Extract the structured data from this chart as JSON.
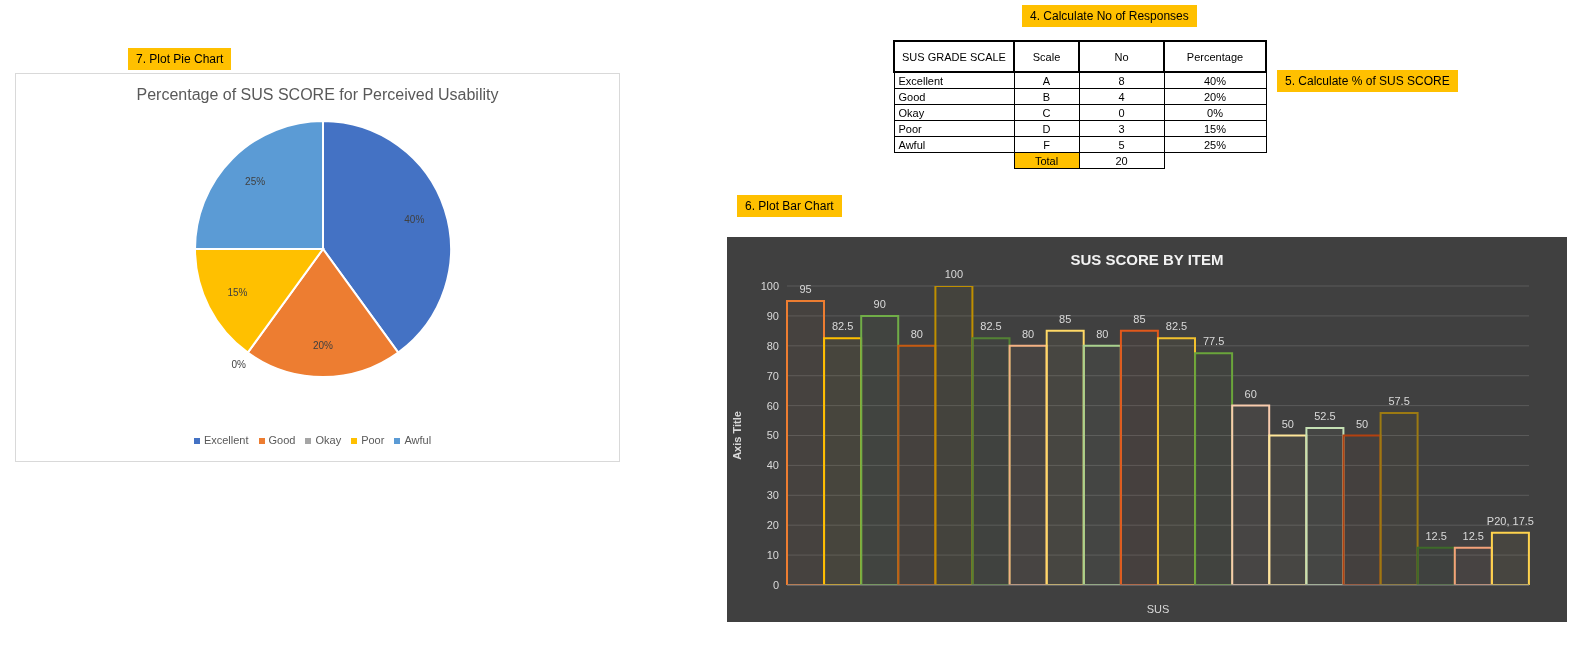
{
  "chart_data": [
    {
      "type": "pie",
      "title": "Percentage of SUS SCORE for Perceived Usability",
      "categories": [
        "Excellent",
        "Good",
        "Okay",
        "Poor",
        "Awful"
      ],
      "values": [
        40,
        20,
        0,
        15,
        25
      ],
      "colors": [
        "#4472c4",
        "#ed7d31",
        "#a5a5a5",
        "#ffc000",
        "#5b9bd5"
      ],
      "value_labels": [
        "40%",
        "20%",
        "0%",
        "15%",
        "25%"
      ],
      "legend": "bottom",
      "annotations": [
        "7. Plot Pie Chart"
      ]
    },
    {
      "type": "other",
      "title": "4. Calculate No of Responses",
      "categories": [
        "Excellent",
        "Good",
        "Okay",
        "Poor",
        "Awful"
      ],
      "series": [
        {
          "name": "No",
          "values": [
            8,
            4,
            0,
            3,
            5
          ]
        }
      ],
      "data_labels": true,
      "annotations": [
        "SUS GRADE SCALE",
        "Scale",
        "A",
        "B",
        "C",
        "D",
        "F",
        "Total",
        "20",
        "5. Calculate % of SUS SCORE",
        "Percentage",
        "40%",
        "20%",
        "0%",
        "15%",
        "25%"
      ]
    },
    {
      "type": "bar",
      "title": "SUS SCORE BY ITEM",
      "xlabel": "SUS",
      "ylabel": "Axis Title",
      "categories": [
        null,
        null,
        null,
        null,
        null,
        null,
        null,
        null,
        null,
        null,
        null,
        null,
        null,
        null,
        null,
        null,
        null,
        null,
        null,
        null
      ],
      "values": [
        95,
        82.5,
        90,
        80,
        100,
        82.5,
        80,
        85,
        80,
        85,
        82.5,
        77.5,
        60,
        50,
        52.5,
        50,
        57.5,
        12.5,
        12.5,
        17.5
      ],
      "colors": [
        "#ed7d31",
        "#ffc000",
        "#70ad47",
        "#c55a11",
        "#bf8f00",
        "#548235",
        "#f4b183",
        "#ffd966",
        "#a9d18e",
        "#e2581b",
        "#f2c12e",
        "#6aa53b",
        "#f8cbad",
        "#ffe699",
        "#c5e0b4",
        "#b4410f",
        "#9c7a12",
        "#3e6a2a",
        "#f4a27a",
        "#ffd34d"
      ],
      "value_labels": [
        "95",
        "82.5",
        "90",
        "80",
        "100",
        "82.5",
        "80",
        "85",
        "80",
        "85",
        "82.5",
        "77.5",
        "60",
        "50",
        "52.5",
        "50",
        "57.5",
        "12.5",
        "12.5",
        "P20, 17.5"
      ],
      "ylim": [
        0,
        100
      ],
      "yticks": [
        0,
        10,
        20,
        30,
        40,
        50,
        60,
        70,
        80,
        90,
        100
      ],
      "grid": "y",
      "annotations": [
        "6. Plot Bar Chart"
      ]
    }
  ]
}
